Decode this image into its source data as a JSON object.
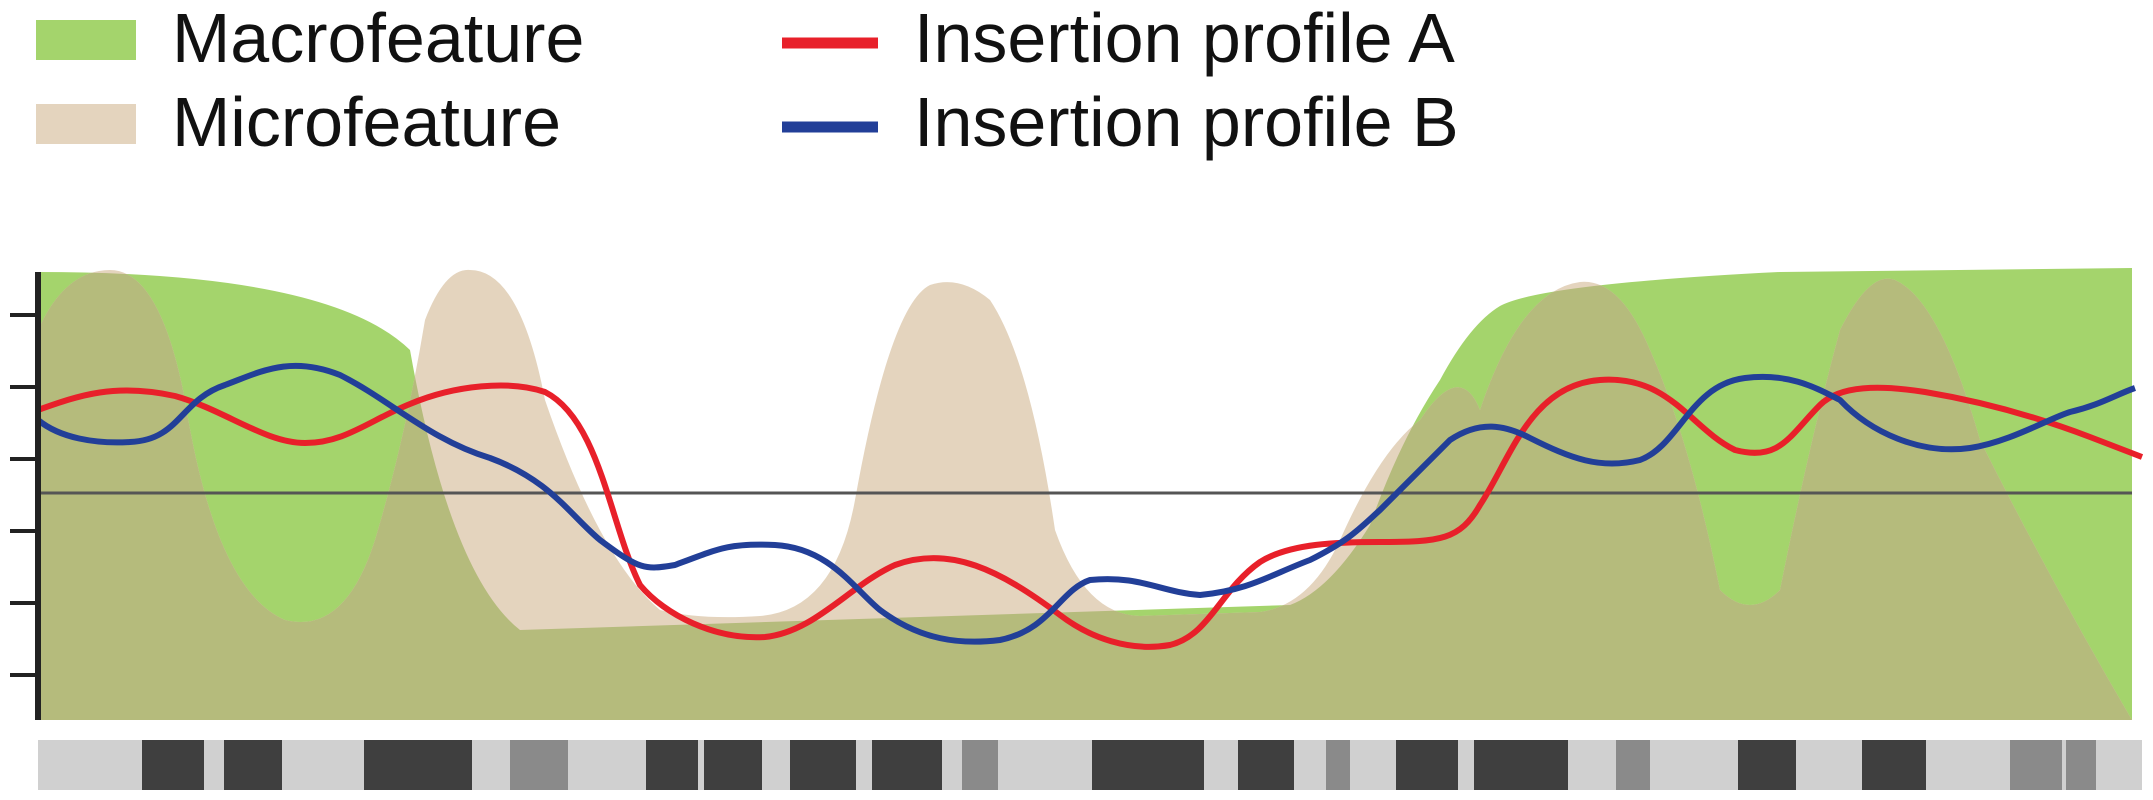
{
  "legend": {
    "items": [
      {
        "label": "Macrofeature",
        "kind": "patch",
        "color": "#a4d46c"
      },
      {
        "label": "Microfeature",
        "kind": "patch",
        "color": "#e4d4be"
      },
      {
        "label": "Insertion profile A",
        "kind": "line",
        "color": "#e8202a"
      },
      {
        "label": "Insertion profile B",
        "kind": "line",
        "color": "#223f98"
      }
    ]
  },
  "colors": {
    "macrofeature": "#a4d46c",
    "microfeature": "#e4d4be",
    "overlap": "#b5bb7c",
    "profile_a": "#e8202a",
    "profile_b": "#223f98",
    "axis": "#222222",
    "baseline": "#555555",
    "track_background": "#d0d0d0",
    "track_band_dark": "#3f3f3f",
    "track_band_mid": "#8a8a8a"
  },
  "diagram": {
    "y_axis_ticks": 6,
    "baseline": "horizontal reference line at the midpoint between feature peaks",
    "bottom_track": "chromosome-like band track with dark and mid-grey blocks"
  }
}
